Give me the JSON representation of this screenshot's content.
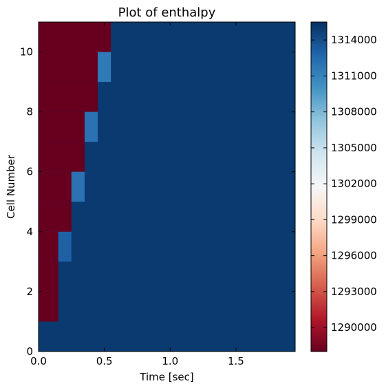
{
  "chart_data": {
    "type": "heatmap",
    "title": "Plot of enthalpy",
    "xlabel": "Time [sec]",
    "ylabel": "Cell Number",
    "xlim": [
      0.0,
      1.95
    ],
    "ylim": [
      0,
      11
    ],
    "xticks": [
      0.0,
      0.5,
      1.0,
      1.5
    ],
    "xtick_labels": [
      "0.0",
      "0.5",
      "1.0",
      "1.5"
    ],
    "yticks": [
      0,
      2,
      4,
      6,
      8,
      10
    ],
    "ytick_labels": [
      "0",
      "2",
      "4",
      "6",
      "8",
      "10"
    ],
    "colormap": "RdBu",
    "vmin": 1288000,
    "vmax": 1315500,
    "colorbar_ticks": [
      1290000,
      1293000,
      1296000,
      1299000,
      1302000,
      1305000,
      1308000,
      1311000,
      1314000
    ],
    "colorbar_tick_labels": [
      "1290000",
      "1293000",
      "1296000",
      "1299000",
      "1302000",
      "1305000",
      "1308000",
      "1311000",
      "1314000"
    ],
    "background_value": 1315000,
    "cells": [
      {
        "t0": 0.0,
        "t1": 0.15,
        "c0": 1,
        "c1": 2,
        "value": 1288000
      },
      {
        "t0": 0.0,
        "t1": 0.15,
        "c0": 2,
        "c1": 3,
        "value": 1288000
      },
      {
        "t0": 0.0,
        "t1": 0.15,
        "c0": 3,
        "c1": 4,
        "value": 1288000
      },
      {
        "t0": 0.0,
        "t1": 0.25,
        "c0": 4,
        "c1": 5,
        "value": 1288000
      },
      {
        "t0": 0.0,
        "t1": 0.25,
        "c0": 5,
        "c1": 6,
        "value": 1288000
      },
      {
        "t0": 0.0,
        "t1": 0.35,
        "c0": 6,
        "c1": 7,
        "value": 1288000
      },
      {
        "t0": 0.0,
        "t1": 0.35,
        "c0": 7,
        "c1": 8,
        "value": 1288000
      },
      {
        "t0": 0.0,
        "t1": 0.45,
        "c0": 8,
        "c1": 9,
        "value": 1288000
      },
      {
        "t0": 0.0,
        "t1": 0.45,
        "c0": 9,
        "c1": 10,
        "value": 1288000
      },
      {
        "t0": 0.0,
        "t1": 0.55,
        "c0": 10,
        "c1": 11,
        "value": 1288000
      },
      {
        "t0": 0.15,
        "t1": 0.25,
        "c0": 3,
        "c1": 4,
        "value": 1313000
      },
      {
        "t0": 0.25,
        "t1": 0.35,
        "c0": 5,
        "c1": 6,
        "value": 1312000
      },
      {
        "t0": 0.35,
        "t1": 0.45,
        "c0": 7,
        "c1": 8,
        "value": 1312000
      },
      {
        "t0": 0.45,
        "t1": 0.55,
        "c0": 9,
        "c1": 10,
        "value": 1311500
      }
    ]
  }
}
